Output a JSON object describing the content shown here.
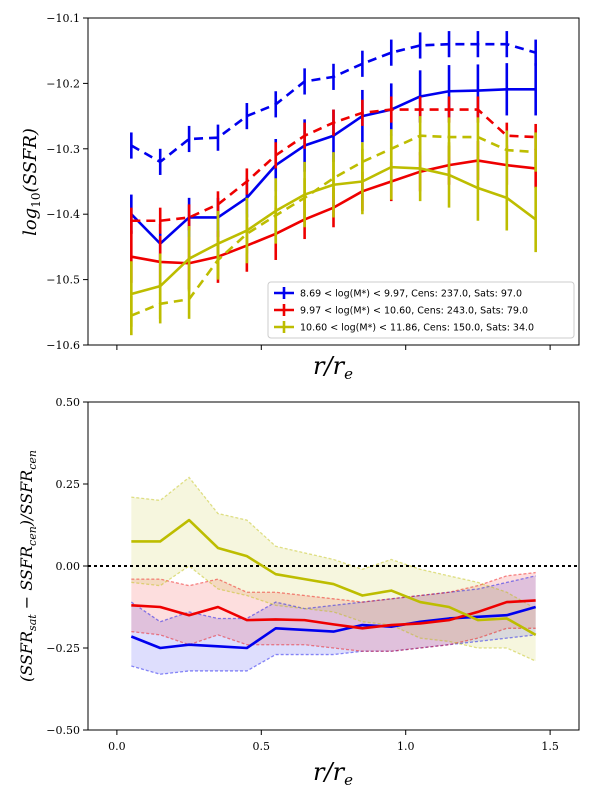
{
  "chart_data": [
    {
      "type": "line",
      "xlabel": "r/r_e",
      "ylabel": "log_10(SSFR)",
      "xlim": [
        -0.1,
        1.6
      ],
      "ylim": [
        -10.6,
        -10.1
      ],
      "xticks": [
        0.0,
        0.5,
        1.0,
        1.5
      ],
      "xtick_labels_visible": false,
      "yticks": [
        -10.6,
        -10.5,
        -10.4,
        -10.3,
        -10.2,
        -10.1
      ],
      "ytick_labels": [
        "−10.6",
        "−10.5",
        "−10.4",
        "−10.3",
        "−10.2",
        "−10.1"
      ],
      "x": [
        0.05,
        0.15,
        0.25,
        0.35,
        0.45,
        0.55,
        0.65,
        0.75,
        0.85,
        0.95,
        1.05,
        1.15,
        1.25,
        1.35,
        1.45
      ],
      "legend_position": "lower-right",
      "legend": [
        {
          "color": "#0000ee",
          "label": "8.69 < log(M*) < 9.97, Cens: 237.0, Sats: 97.0"
        },
        {
          "color": "#ee0000",
          "label": "9.97 < log(M*) < 10.60, Cens: 243.0, Sats: 79.0"
        },
        {
          "color": "#bdbd00",
          "label": "10.60 < log(M*) < 11.86, Cens: 150.0, Sats: 34.0"
        }
      ],
      "series": [
        {
          "group": 1,
          "color": "#0000ee",
          "style": "solid",
          "values": [
            -10.4,
            -10.445,
            -10.405,
            -10.405,
            -10.375,
            -10.325,
            -10.295,
            -10.28,
            -10.25,
            -10.24,
            -10.22,
            -10.212,
            -10.211,
            -10.209,
            -10.209
          ],
          "errors": [
            0.03,
            0.03,
            0.03,
            0.03,
            0.03,
            0.04,
            0.04,
            0.04,
            0.04,
            0.04,
            0.04,
            0.04,
            0.04,
            0.04,
            0.04
          ]
        },
        {
          "group": 1,
          "color": "#0000ee",
          "style": "dashed",
          "values": [
            -10.295,
            -10.32,
            -10.285,
            -10.283,
            -10.25,
            -10.232,
            -10.197,
            -10.19,
            -10.17,
            -10.153,
            -10.142,
            -10.14,
            -10.14,
            -10.14,
            -10.153
          ],
          "errors": [
            0.02,
            0.02,
            0.02,
            0.02,
            0.02,
            0.02,
            0.02,
            0.02,
            0.02,
            0.02,
            0.02,
            0.02,
            0.02,
            0.02,
            0.02
          ]
        },
        {
          "group": 2,
          "color": "#ee0000",
          "style": "solid",
          "values": [
            -10.465,
            -10.473,
            -10.475,
            -10.465,
            -10.448,
            -10.43,
            -10.408,
            -10.39,
            -10.365,
            -10.35,
            -10.335,
            -10.325,
            -10.318,
            -10.325,
            -10.33
          ],
          "errors": [
            0.04,
            0.04,
            0.04,
            0.04,
            0.04,
            0.04,
            0.03,
            0.03,
            0.03,
            0.03,
            0.03,
            0.03,
            0.03,
            0.03,
            0.03
          ]
        },
        {
          "group": 2,
          "color": "#ee0000",
          "style": "dashed",
          "values": [
            -10.41,
            -10.41,
            -10.405,
            -10.385,
            -10.35,
            -10.31,
            -10.28,
            -10.26,
            -10.245,
            -10.24,
            -10.24,
            -10.24,
            -10.24,
            -10.28,
            -10.282
          ],
          "errors": [
            0.02,
            0.02,
            0.02,
            0.02,
            0.02,
            0.02,
            0.02,
            0.02,
            0.02,
            0.02,
            0.02,
            0.02,
            0.02,
            0.02,
            0.02
          ]
        },
        {
          "group": 3,
          "color": "#bdbd00",
          "style": "solid",
          "values": [
            -10.522,
            -10.51,
            -10.468,
            -10.445,
            -10.425,
            -10.395,
            -10.37,
            -10.355,
            -10.35,
            -10.328,
            -10.33,
            -10.34,
            -10.36,
            -10.375,
            -10.408
          ],
          "errors": [
            0.05,
            0.05,
            0.05,
            0.05,
            0.05,
            0.05,
            0.05,
            0.05,
            0.05,
            0.05,
            0.05,
            0.05,
            0.05,
            0.05,
            0.05
          ]
        },
        {
          "group": 3,
          "color": "#bdbd00",
          "style": "dashed",
          "values": [
            -10.555,
            -10.537,
            -10.53,
            -10.47,
            -10.43,
            -10.402,
            -10.375,
            -10.345,
            -10.32,
            -10.3,
            -10.28,
            -10.282,
            -10.282,
            -10.302,
            -10.305
          ],
          "errors": [
            0.03,
            0.03,
            0.03,
            0.03,
            0.03,
            0.03,
            0.03,
            0.03,
            0.03,
            0.03,
            0.03,
            0.03,
            0.03,
            0.03,
            0.03
          ]
        }
      ]
    },
    {
      "type": "area",
      "xlabel": "r/r_e",
      "ylabel": "(SSFR_sat − SSFR_cen)/SSFR_cen",
      "xlim": [
        -0.1,
        1.6
      ],
      "ylim": [
        -0.5,
        0.5
      ],
      "xticks": [
        0.0,
        0.5,
        1.0,
        1.5
      ],
      "xtick_labels": [
        "0.0",
        "0.5",
        "1.0",
        "1.5"
      ],
      "yticks": [
        -0.5,
        -0.25,
        0.0,
        0.25,
        0.5
      ],
      "ytick_labels": [
        "−0.50",
        "−0.25",
        "0.00",
        "0.25",
        "0.50"
      ],
      "reference_line": 0.0,
      "x": [
        0.05,
        0.15,
        0.25,
        0.35,
        0.45,
        0.55,
        0.65,
        0.75,
        0.85,
        0.95,
        1.05,
        1.15,
        1.25,
        1.35,
        1.45
      ],
      "series": [
        {
          "group": 1,
          "color": "#0000ee",
          "values": [
            -0.215,
            -0.25,
            -0.24,
            -0.245,
            -0.25,
            -0.19,
            -0.195,
            -0.2,
            -0.18,
            -0.185,
            -0.17,
            -0.16,
            -0.155,
            -0.15,
            -0.125
          ],
          "upper": [
            -0.11,
            -0.17,
            -0.14,
            -0.16,
            -0.16,
            -0.11,
            -0.13,
            -0.12,
            -0.11,
            -0.1,
            -0.09,
            -0.08,
            -0.07,
            -0.05,
            -0.03
          ],
          "lower": [
            -0.305,
            -0.33,
            -0.32,
            -0.32,
            -0.32,
            -0.27,
            -0.27,
            -0.27,
            -0.26,
            -0.26,
            -0.25,
            -0.24,
            -0.23,
            -0.22,
            -0.21
          ]
        },
        {
          "group": 2,
          "color": "#ee0000",
          "values": [
            -0.12,
            -0.125,
            -0.15,
            -0.125,
            -0.165,
            -0.163,
            -0.165,
            -0.178,
            -0.19,
            -0.18,
            -0.175,
            -0.165,
            -0.14,
            -0.11,
            -0.105
          ],
          "upper": [
            -0.04,
            -0.04,
            -0.06,
            -0.04,
            -0.08,
            -0.08,
            -0.09,
            -0.1,
            -0.11,
            -0.1,
            -0.09,
            -0.08,
            -0.06,
            -0.03,
            -0.02
          ],
          "lower": [
            -0.2,
            -0.21,
            -0.24,
            -0.21,
            -0.24,
            -0.24,
            -0.24,
            -0.25,
            -0.26,
            -0.26,
            -0.25,
            -0.24,
            -0.22,
            -0.19,
            -0.19
          ]
        },
        {
          "group": 3,
          "color": "#bdbd00",
          "values": [
            0.075,
            0.075,
            0.14,
            0.055,
            0.03,
            -0.025,
            -0.04,
            -0.055,
            -0.09,
            -0.075,
            -0.11,
            -0.125,
            -0.165,
            -0.16,
            -0.21
          ],
          "upper": [
            0.21,
            0.2,
            0.27,
            0.16,
            0.14,
            0.06,
            0.04,
            0.02,
            -0.01,
            0.02,
            -0.01,
            -0.03,
            -0.05,
            -0.08,
            -0.13
          ],
          "lower": [
            -0.05,
            -0.06,
            0.0,
            -0.07,
            -0.09,
            -0.12,
            -0.13,
            -0.14,
            -0.17,
            -0.18,
            -0.22,
            -0.23,
            -0.25,
            -0.25,
            -0.29
          ]
        }
      ]
    }
  ]
}
